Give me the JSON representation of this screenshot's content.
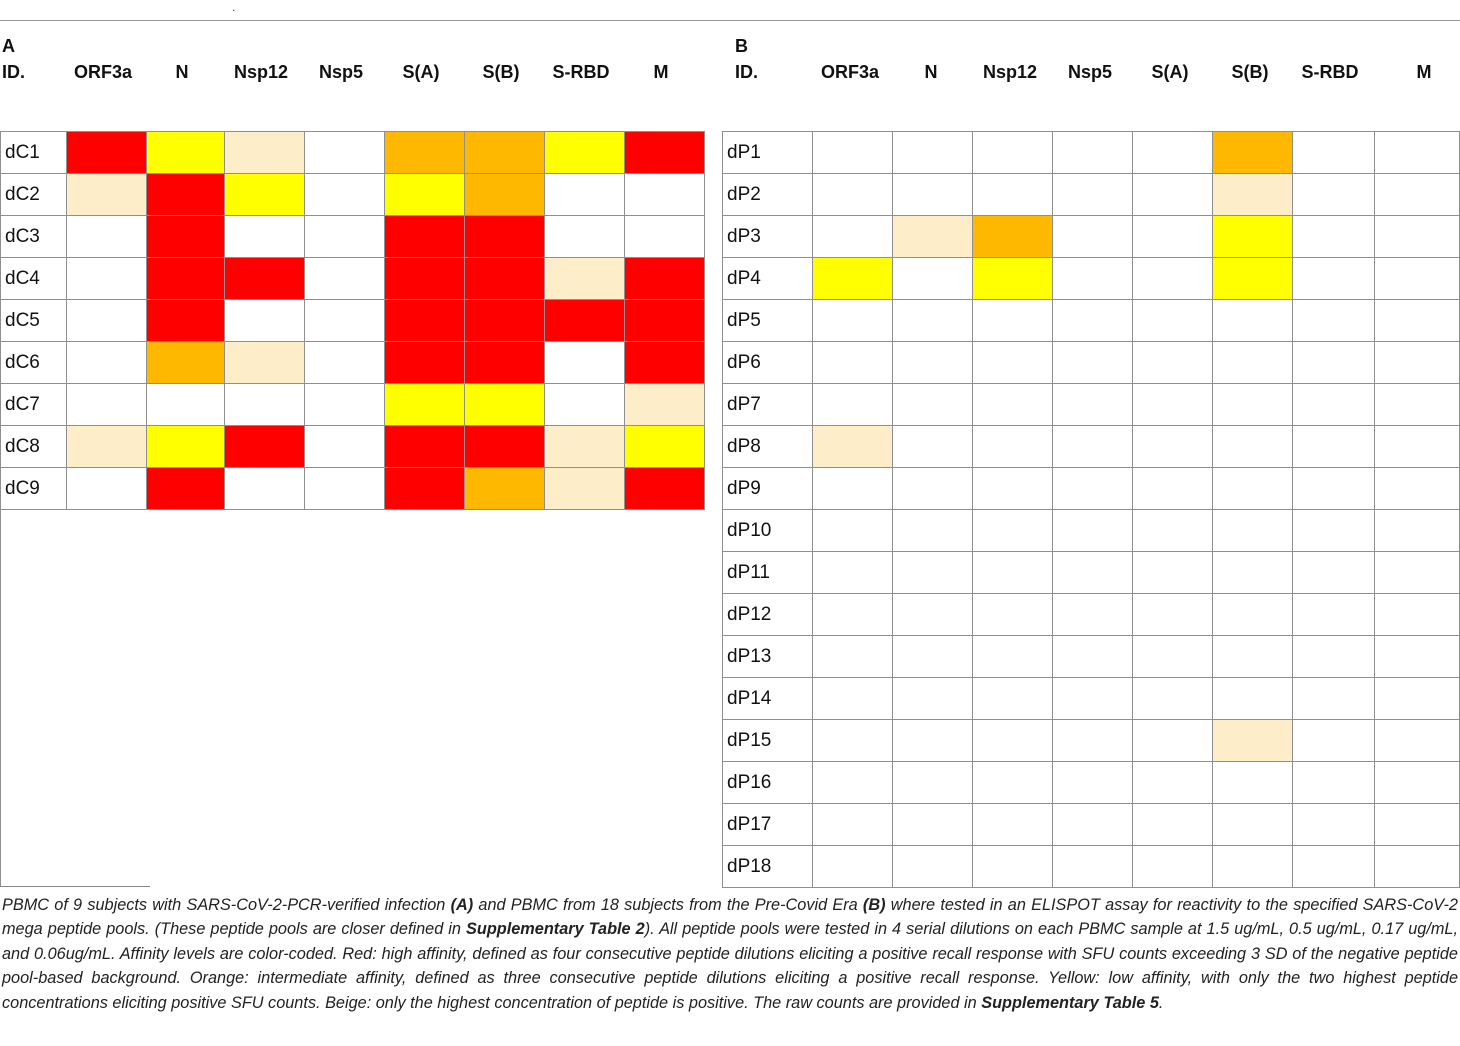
{
  "top_mark": ".",
  "panel_a": {
    "label": "A",
    "headers": [
      "ID.",
      "ORF3a",
      "N",
      "Nsp12",
      "Nsp5",
      "S(A)",
      "S(B)",
      "S-RBD",
      "M"
    ],
    "rows": [
      {
        "id": "dC1",
        "cells": [
          "red",
          "yellow",
          "beige",
          "white",
          "orange",
          "orange",
          "yellow",
          "red"
        ]
      },
      {
        "id": "dC2",
        "cells": [
          "beige",
          "red",
          "yellow",
          "white",
          "yellow",
          "orange",
          "white",
          "white"
        ]
      },
      {
        "id": "dC3",
        "cells": [
          "white",
          "red",
          "white",
          "white",
          "red",
          "red",
          "white",
          "white"
        ]
      },
      {
        "id": "dC4",
        "cells": [
          "white",
          "red",
          "red",
          "white",
          "red",
          "red",
          "beige",
          "red"
        ]
      },
      {
        "id": "dC5",
        "cells": [
          "white",
          "red",
          "white",
          "white",
          "red",
          "red",
          "red",
          "red"
        ]
      },
      {
        "id": "dC6",
        "cells": [
          "white",
          "orange",
          "beige",
          "white",
          "red",
          "red",
          "white",
          "red"
        ]
      },
      {
        "id": "dC7",
        "cells": [
          "white",
          "white",
          "white",
          "white",
          "yellow",
          "yellow",
          "white",
          "beige"
        ]
      },
      {
        "id": "dC8",
        "cells": [
          "beige",
          "yellow",
          "red",
          "white",
          "red",
          "red",
          "beige",
          "yellow"
        ]
      },
      {
        "id": "dC9",
        "cells": [
          "white",
          "red",
          "white",
          "white",
          "red",
          "orange",
          "beige",
          "red"
        ]
      }
    ]
  },
  "panel_b": {
    "label": "B",
    "headers": [
      "ID.",
      "ORF3a",
      "N",
      "Nsp12",
      "Nsp5",
      "S(A)",
      "S(B)",
      "S-RBD",
      "M"
    ],
    "rows": [
      {
        "id": "dP1",
        "cells": [
          "white",
          "white",
          "white",
          "white",
          "white",
          "orange",
          "white",
          "white"
        ]
      },
      {
        "id": "dP2",
        "cells": [
          "white",
          "white",
          "white",
          "white",
          "white",
          "beige",
          "white",
          "white"
        ]
      },
      {
        "id": "dP3",
        "cells": [
          "white",
          "beige",
          "orange",
          "white",
          "white",
          "yellow",
          "white",
          "white"
        ]
      },
      {
        "id": "dP4",
        "cells": [
          "yellow",
          "white",
          "yellow",
          "white",
          "white",
          "yellow",
          "white",
          "white"
        ]
      },
      {
        "id": "dP5",
        "cells": [
          "white",
          "white",
          "white",
          "white",
          "white",
          "white",
          "white",
          "white"
        ]
      },
      {
        "id": "dP6",
        "cells": [
          "white",
          "white",
          "white",
          "white",
          "white",
          "white",
          "white",
          "white"
        ]
      },
      {
        "id": "dP7",
        "cells": [
          "white",
          "white",
          "white",
          "white",
          "white",
          "white",
          "white",
          "white"
        ]
      },
      {
        "id": "dP8",
        "cells": [
          "beige",
          "white",
          "white",
          "white",
          "white",
          "white",
          "white",
          "white"
        ]
      },
      {
        "id": "dP9",
        "cells": [
          "white",
          "white",
          "white",
          "white",
          "white",
          "white",
          "white",
          "white"
        ]
      },
      {
        "id": "dP10",
        "cells": [
          "white",
          "white",
          "white",
          "white",
          "white",
          "white",
          "white",
          "white"
        ]
      },
      {
        "id": "dP11",
        "cells": [
          "white",
          "white",
          "white",
          "white",
          "white",
          "white",
          "white",
          "white"
        ]
      },
      {
        "id": "dP12",
        "cells": [
          "white",
          "white",
          "white",
          "white",
          "white",
          "white",
          "white",
          "white"
        ]
      },
      {
        "id": "dP13",
        "cells": [
          "white",
          "white",
          "white",
          "white",
          "white",
          "white",
          "white",
          "white"
        ]
      },
      {
        "id": "dP14",
        "cells": [
          "white",
          "white",
          "white",
          "white",
          "white",
          "white",
          "white",
          "white"
        ]
      },
      {
        "id": "dP15",
        "cells": [
          "white",
          "white",
          "white",
          "white",
          "white",
          "beige",
          "white",
          "white"
        ]
      },
      {
        "id": "dP16",
        "cells": [
          "white",
          "white",
          "white",
          "white",
          "white",
          "white",
          "white",
          "white"
        ]
      },
      {
        "id": "dP17",
        "cells": [
          "white",
          "white",
          "white",
          "white",
          "white",
          "white",
          "white",
          "white"
        ]
      },
      {
        "id": "dP18",
        "cells": [
          "white",
          "white",
          "white",
          "white",
          "white",
          "white",
          "white",
          "white"
        ]
      }
    ]
  },
  "colors": {
    "red": "#ff0000",
    "orange": "#ffb800",
    "yellow": "#ffff00",
    "beige": "#fdedc8",
    "white": "#ffffff"
  },
  "caption": {
    "t1": "PBMC of 9 subjects with SARS-CoV-2-PCR-verified infection ",
    "b1": "(A)",
    "t2": " and PBMC from 18 subjects from the Pre-Covid Era ",
    "b2": "(B)",
    "t3": " where tested in an ELISPOT assay for reactivity to the specified SARS-CoV-2 mega peptide pools. (These peptide pools are closer defined in ",
    "b3": "Supplementary Table 2",
    "t4": "). All peptide pools were tested in 4 serial dilutions on each PBMC sample at 1.5 ug/mL, 0.5 ug/mL, 0.17 ug/mL, and 0.06ug/mL. Affinity levels are color-coded. Red: high affinity, defined as four consecutive peptide dilutions eliciting a positive recall response with SFU counts exceeding 3 SD of the negative peptide pool-based background. Orange: intermediate affinity, defined as three consecutive peptide dilutions eliciting a positive recall response. Yellow: low affinity, with only the two highest peptide concentrations eliciting positive SFU counts. Beige: only the highest concentration of peptide is positive. The raw counts are provided in ",
    "b4": "Supplementary Table 5",
    "t5": "."
  }
}
